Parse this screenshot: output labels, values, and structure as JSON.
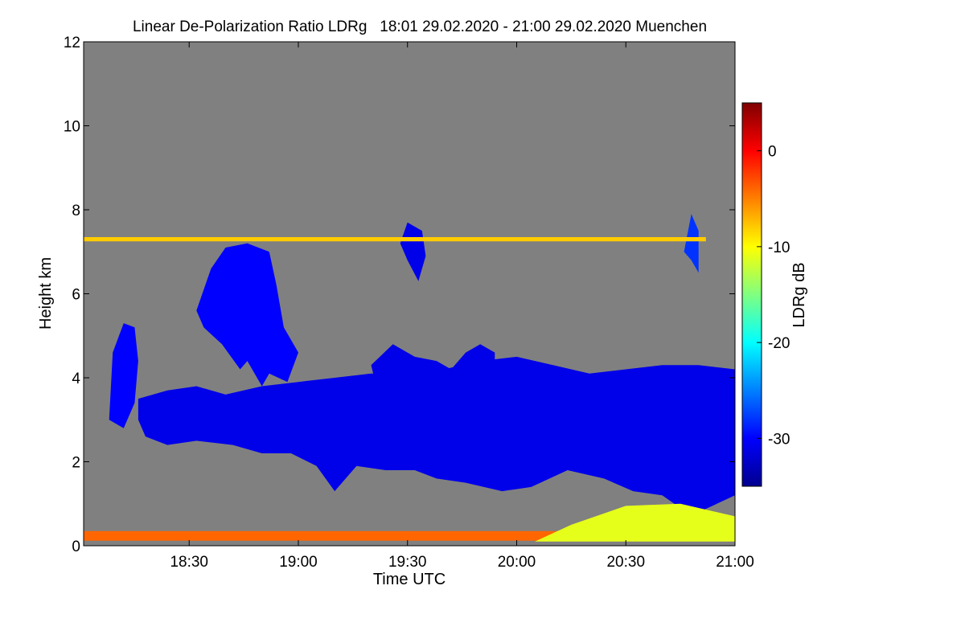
{
  "chart_data": {
    "type": "heatmap",
    "title": "Linear De-Polarization Ratio LDRg   18:01 29.02.2020 - 21:00 29.02.2020 Muenchen",
    "xlabel": "Time UTC",
    "ylabel": "Height km",
    "xlim_minutes_utc": [
      1081,
      1260
    ],
    "ylim_km": [
      0,
      12
    ],
    "x_ticks": [
      {
        "label": "18:30",
        "minutes": 1110
      },
      {
        "label": "19:00",
        "minutes": 1140
      },
      {
        "label": "19:30",
        "minutes": 1170
      },
      {
        "label": "20:00",
        "minutes": 1200
      },
      {
        "label": "20:30",
        "minutes": 1230
      },
      {
        "label": "21:00",
        "minutes": 1260
      }
    ],
    "y_ticks": [
      0,
      2,
      4,
      6,
      8,
      10,
      12
    ],
    "background_color": "#808080",
    "colorbar": {
      "label": "LDRg dB",
      "range": [
        -35,
        5
      ],
      "ticks": [
        "0",
        "-10",
        "-20",
        "-30"
      ],
      "tick_values": [
        0,
        -10,
        -20,
        -30
      ],
      "colors": [
        "#00008f",
        "#0000ff",
        "#0080ff",
        "#00ffff",
        "#80ff80",
        "#ffff00",
        "#ff8000",
        "#ff0000",
        "#800000"
      ]
    },
    "features": [
      {
        "name": "main-cloud-layer",
        "ldr_db": -31,
        "polygon": [
          [
            1096,
            3.5
          ],
          [
            1104,
            3.7
          ],
          [
            1112,
            3.8
          ],
          [
            1120,
            3.6
          ],
          [
            1130,
            3.8
          ],
          [
            1140,
            3.9
          ],
          [
            1150,
            4.0
          ],
          [
            1160,
            4.1
          ],
          [
            1170,
            4.1
          ],
          [
            1180,
            4.2
          ],
          [
            1190,
            4.4
          ],
          [
            1200,
            4.5
          ],
          [
            1210,
            4.3
          ],
          [
            1220,
            4.1
          ],
          [
            1230,
            4.2
          ],
          [
            1240,
            4.3
          ],
          [
            1250,
            4.3
          ],
          [
            1260,
            4.2
          ],
          [
            1260,
            1.2
          ],
          [
            1255,
            1.0
          ],
          [
            1250,
            0.8
          ],
          [
            1245,
            0.9
          ],
          [
            1240,
            1.2
          ],
          [
            1232,
            1.3
          ],
          [
            1224,
            1.6
          ],
          [
            1214,
            1.8
          ],
          [
            1204,
            1.4
          ],
          [
            1196,
            1.3
          ],
          [
            1186,
            1.5
          ],
          [
            1178,
            1.6
          ],
          [
            1172,
            1.8
          ],
          [
            1164,
            1.8
          ],
          [
            1156,
            1.9
          ],
          [
            1150,
            1.3
          ],
          [
            1145,
            1.9
          ],
          [
            1138,
            2.2
          ],
          [
            1130,
            2.2
          ],
          [
            1122,
            2.4
          ],
          [
            1112,
            2.5
          ],
          [
            1104,
            2.4
          ],
          [
            1098,
            2.6
          ],
          [
            1096,
            3.0
          ]
        ]
      },
      {
        "name": "isolated-cloud-18-15",
        "ldr_db": -30,
        "polygon": [
          [
            1088,
            3.0
          ],
          [
            1089,
            4.6
          ],
          [
            1092,
            5.3
          ],
          [
            1095,
            5.2
          ],
          [
            1096,
            4.4
          ],
          [
            1095,
            3.4
          ],
          [
            1092,
            2.8
          ]
        ]
      },
      {
        "name": "upper-cloud-tower",
        "ldr_db": -30,
        "polygon": [
          [
            1112,
            5.6
          ],
          [
            1116,
            6.6
          ],
          [
            1120,
            7.1
          ],
          [
            1126,
            7.2
          ],
          [
            1132,
            7.0
          ],
          [
            1134,
            6.2
          ],
          [
            1136,
            5.2
          ],
          [
            1140,
            4.6
          ],
          [
            1137,
            3.9
          ],
          [
            1132,
            4.1
          ],
          [
            1130,
            3.8
          ],
          [
            1126,
            4.4
          ],
          [
            1124,
            4.2
          ],
          [
            1119,
            4.8
          ],
          [
            1114,
            5.2
          ]
        ]
      },
      {
        "name": "mid-cloud-segment",
        "ldr_db": -31,
        "polygon": [
          [
            1160,
            4.3
          ],
          [
            1166,
            4.8
          ],
          [
            1172,
            4.5
          ],
          [
            1178,
            4.4
          ],
          [
            1182,
            4.2
          ],
          [
            1186,
            4.6
          ],
          [
            1190,
            4.8
          ],
          [
            1194,
            4.6
          ],
          [
            1194,
            3.4
          ],
          [
            1170,
            3.3
          ],
          [
            1162,
            3.6
          ]
        ]
      },
      {
        "name": "virga-streak-19-35",
        "ldr_db": -31,
        "polygon": [
          [
            1168,
            7.2
          ],
          [
            1170,
            7.7
          ],
          [
            1174,
            7.5
          ],
          [
            1175,
            6.9
          ],
          [
            1173,
            6.3
          ],
          [
            1170,
            6.8
          ]
        ]
      },
      {
        "name": "virga-streak-20-50",
        "ldr_db": -28,
        "polygon": [
          [
            1246,
            7.0
          ],
          [
            1248,
            7.9
          ],
          [
            1250,
            7.5
          ],
          [
            1250,
            6.5
          ],
          [
            1248,
            6.8
          ]
        ]
      },
      {
        "name": "artifact-line-7-3km",
        "ldr_db": -8,
        "polygon": [
          [
            1081,
            7.25
          ],
          [
            1252,
            7.25
          ],
          [
            1252,
            7.35
          ],
          [
            1081,
            7.35
          ]
        ]
      },
      {
        "name": "surface-noise-band",
        "ldr_db": -4,
        "polygon": [
          [
            1081,
            0.12
          ],
          [
            1260,
            0.12
          ],
          [
            1260,
            0.35
          ],
          [
            1081,
            0.35
          ]
        ]
      },
      {
        "name": "surface-clutter-east",
        "ldr_db": -11,
        "polygon": [
          [
            1205,
            0.1
          ],
          [
            1215,
            0.5
          ],
          [
            1230,
            0.95
          ],
          [
            1245,
            1.0
          ],
          [
            1260,
            0.7
          ],
          [
            1260,
            0.1
          ]
        ]
      }
    ]
  }
}
